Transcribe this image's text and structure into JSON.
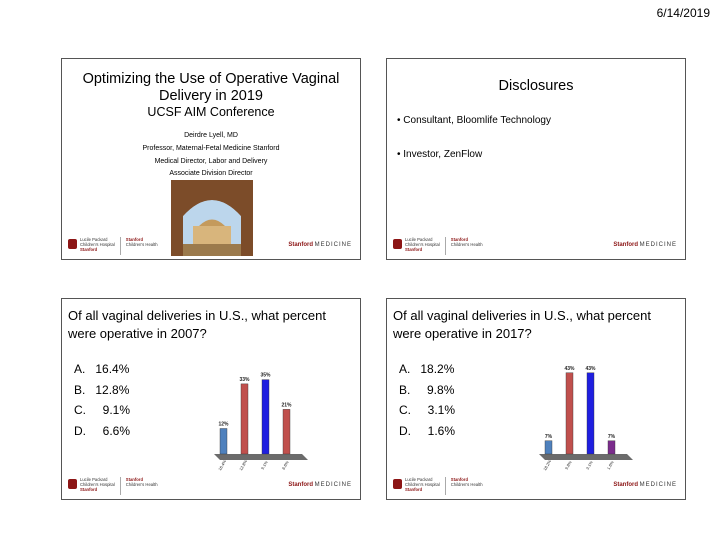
{
  "page_date": "6/14/2019",
  "slides": [
    {
      "title": "Optimizing the Use of Operative Vaginal Delivery in 2019",
      "subtitle": "UCSF AIM Conference",
      "authors": [
        "Deirdre Lyell, MD",
        "Professor, Maternal-Fetal Medicine Stanford",
        "Medical Director, Labor and Delivery",
        "Associate Division Director"
      ]
    },
    {
      "title": "Disclosures",
      "bullets": [
        "• Consultant, Bloomlife Technology",
        "• Investor, ZenFlow"
      ]
    },
    {
      "question": "Of all vaginal deliveries in U.S., what percent were operative in 2007?",
      "options": [
        "A.   16.4%",
        "B.   12.8%",
        "C.     9.1%",
        "D.     6.6%"
      ]
    },
    {
      "question": "Of all vaginal deliveries in U.S., what percent were operative in 2017?",
      "options": [
        "A.   18.2%",
        "B.     9.8%",
        "C.     3.1%",
        "D.     1.6%"
      ]
    }
  ],
  "footer": {
    "logo_lines": [
      "Lucile Packard",
      "Children's Hospital",
      "Stanford"
    ],
    "logo_right_lines": [
      "Stanford",
      "Children's Health"
    ],
    "brand_bold": "Stanford",
    "brand_light": "MEDICINE"
  },
  "chart_data": [
    {
      "type": "bar",
      "categories": [
        "16.4%",
        "12.8%",
        "9.1%",
        "6.6%"
      ],
      "values": [
        12,
        33,
        35,
        21
      ],
      "value_labels": [
        "12%",
        "33%",
        "35%",
        "21%"
      ],
      "colors": [
        "#4f81bd",
        "#c0504d",
        "#1f1fe0",
        "#c0504d"
      ],
      "ylim": [
        0,
        40
      ]
    },
    {
      "type": "bar",
      "categories": [
        "18.2%",
        "9.8%",
        "3.1%",
        "1.6%"
      ],
      "values": [
        7,
        43,
        43,
        7
      ],
      "value_labels": [
        "7%",
        "43%",
        "43%",
        "7%"
      ],
      "colors": [
        "#4f81bd",
        "#c0504d",
        "#1f1fe0",
        "#7b2c8c"
      ],
      "ylim": [
        0,
        45
      ]
    }
  ]
}
